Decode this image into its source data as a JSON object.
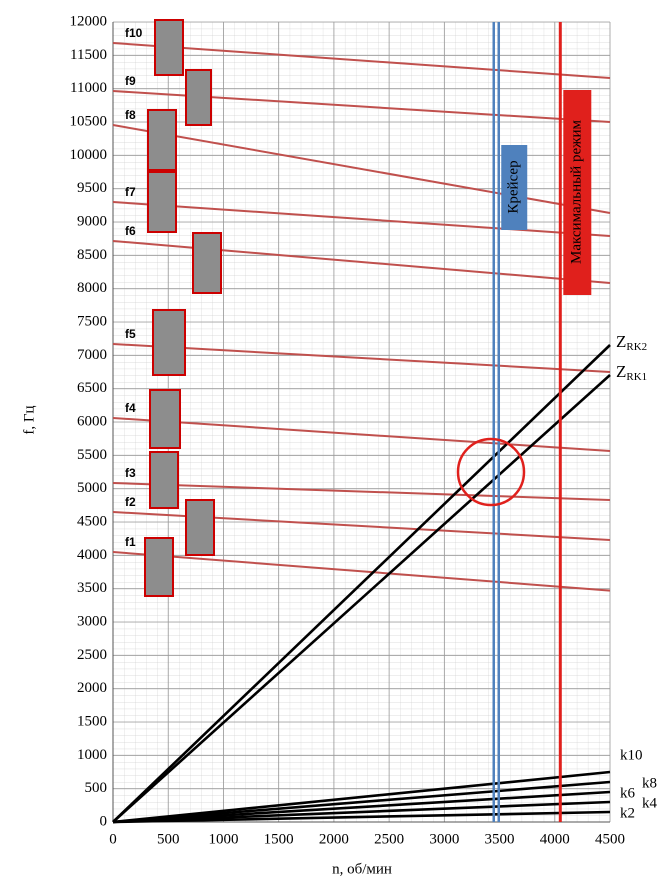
{
  "chart_data": {
    "type": "line",
    "x_label": "n, об/мин",
    "y_label": "f, Гц",
    "x": [
      0,
      4500
    ],
    "series": [
      {
        "name": "f1",
        "color": "#c0504d",
        "values": [
          4050,
          3470
        ]
      },
      {
        "name": "f2",
        "color": "#c0504d",
        "values": [
          4650,
          4230
        ]
      },
      {
        "name": "f3",
        "color": "#c0504d",
        "values": [
          5085,
          4830
        ]
      },
      {
        "name": "f4",
        "color": "#c0504d",
        "values": [
          6060,
          5565
        ]
      },
      {
        "name": "f5",
        "color": "#c0504d",
        "values": [
          7170,
          6750
        ]
      },
      {
        "name": "f6",
        "color": "#c0504d",
        "values": [
          8715,
          8085
        ]
      },
      {
        "name": "f7",
        "color": "#c0504d",
        "values": [
          9300,
          8790
        ]
      },
      {
        "name": "f8",
        "color": "#c0504d",
        "values": [
          10455,
          9135
        ]
      },
      {
        "name": "f9",
        "color": "#c0504d",
        "values": [
          10965,
          10500
        ]
      },
      {
        "name": "f10",
        "color": "#c0504d",
        "values": [
          11685,
          11160
        ]
      },
      {
        "name": "ZRK2",
        "color": "#000000",
        "values": [
          0,
          7155
        ]
      },
      {
        "name": "ZRK1",
        "color": "#000000",
        "values": [
          0,
          6705
        ]
      },
      {
        "name": "k10",
        "color": "#000000",
        "values": [
          0,
          750
        ]
      },
      {
        "name": "k8",
        "color": "#000000",
        "values": [
          0,
          600
        ]
      },
      {
        "name": "k6",
        "color": "#000000",
        "values": [
          0,
          450
        ]
      },
      {
        "name": "k4",
        "color": "#000000",
        "values": [
          0,
          300
        ]
      },
      {
        "name": "k2",
        "color": "#000000",
        "values": [
          0,
          150
        ]
      }
    ],
    "vlines": [
      {
        "label": "Крейсер",
        "x": 3470,
        "color": "#4f81bd"
      },
      {
        "label": "Максимальный режим",
        "x": 4050,
        "color": "#e0201c"
      }
    ],
    "xlim": [
      0,
      4500
    ],
    "xticks": [
      0,
      500,
      1000,
      1500,
      2000,
      2500,
      3000,
      3500,
      4000,
      4500
    ],
    "ylim": [
      0,
      12000
    ],
    "yticks": [
      0,
      500,
      1000,
      1500,
      2000,
      2500,
      3000,
      3500,
      4000,
      4500,
      5000,
      5500,
      6000,
      6500,
      7000,
      7500,
      8000,
      8500,
      9000,
      9500,
      10000,
      10500,
      11000,
      11500,
      12000
    ],
    "grid": true
  }
}
